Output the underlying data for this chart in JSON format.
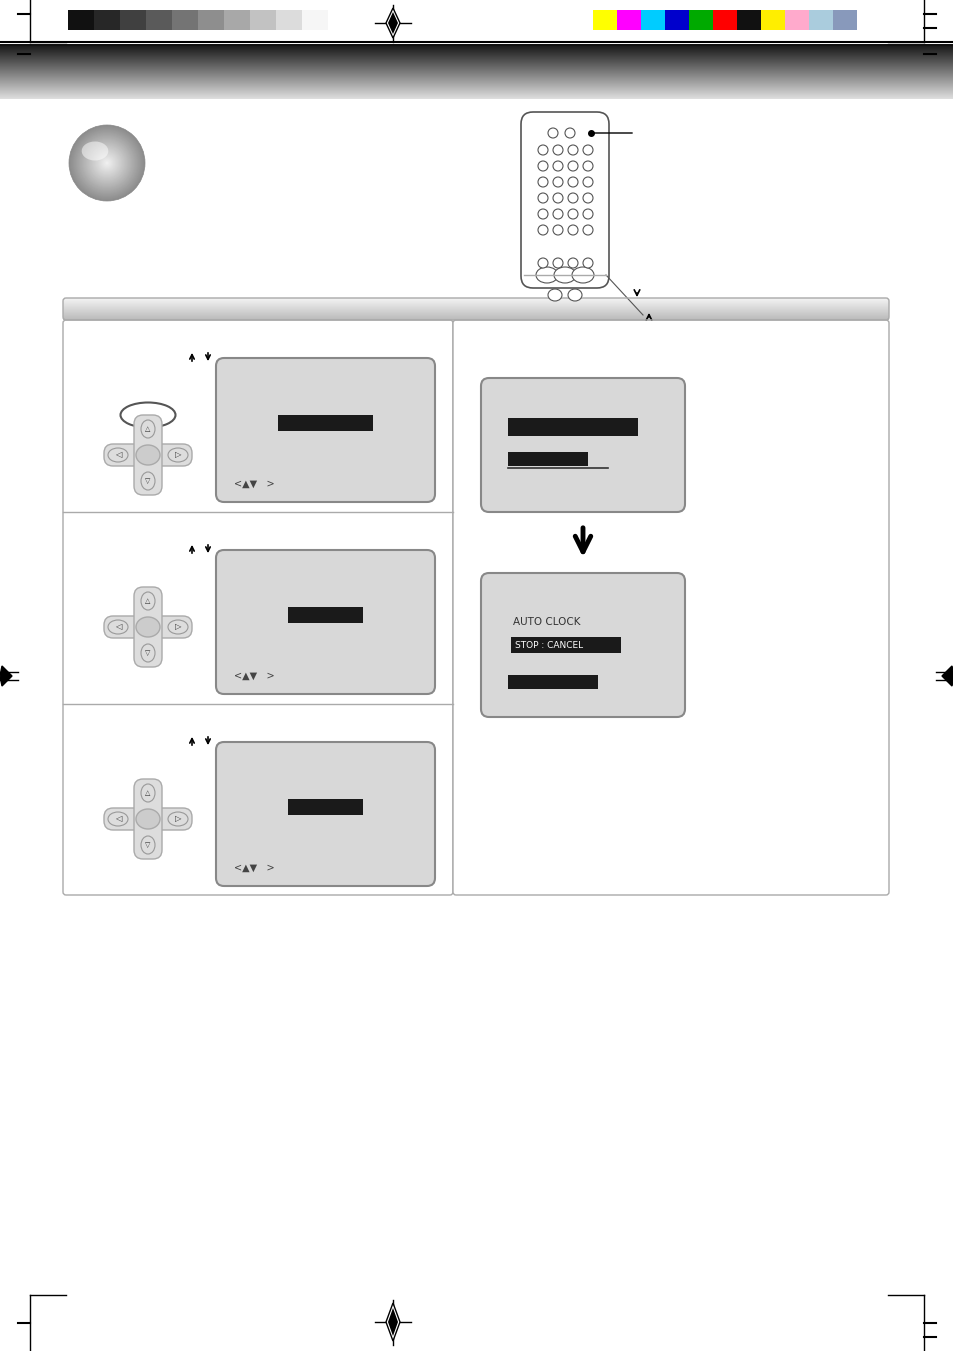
{
  "bg_color": "#ffffff",
  "color_bars_left": [
    "#111111",
    "#272727",
    "#404040",
    "#5a5a5a",
    "#747474",
    "#8e8e8e",
    "#a8a8a8",
    "#c2c2c2",
    "#dcdcdc",
    "#f6f6f6"
  ],
  "color_bars_right": [
    "#ffff00",
    "#ff00ff",
    "#00ccff",
    "#0000cc",
    "#00aa00",
    "#ff0000",
    "#111111",
    "#ffee00",
    "#ffaacc",
    "#aaccdd",
    "#8899bb"
  ],
  "header_gradient_dark": 0.08,
  "header_gradient_light": 0.88,
  "section_bar_dark": 0.72,
  "section_bar_light": 0.95
}
